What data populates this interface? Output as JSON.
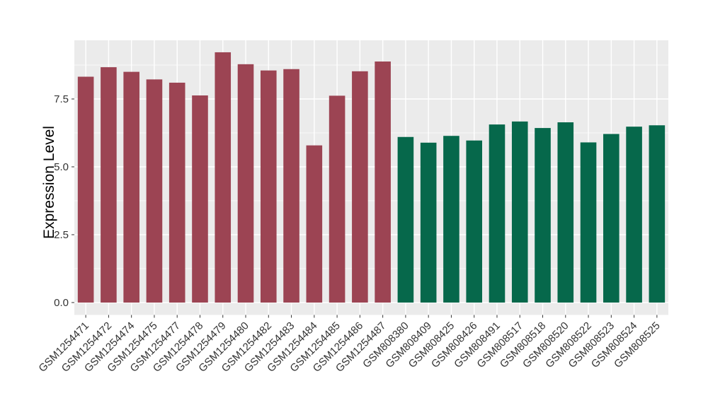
{
  "chart_data": {
    "type": "bar",
    "title": "",
    "xlabel": "",
    "ylabel": "Expression Level",
    "legend": "none",
    "grid": "major+minor",
    "categories": [
      "GSM1254471",
      "GSM1254472",
      "GSM1254474",
      "GSM1254475",
      "GSM1254477",
      "GSM1254478",
      "GSM1254479",
      "GSM1254480",
      "GSM1254482",
      "GSM1254483",
      "GSM1254484",
      "GSM1254485",
      "GSM1254486",
      "GSM1254487",
      "GSM808380",
      "GSM808409",
      "GSM808425",
      "GSM808426",
      "GSM808491",
      "GSM808517",
      "GSM808518",
      "GSM808520",
      "GSM808522",
      "GSM808523",
      "GSM808524",
      "GSM808525"
    ],
    "values": [
      8.32,
      8.67,
      8.5,
      8.22,
      8.1,
      7.63,
      9.22,
      8.78,
      8.55,
      8.6,
      5.79,
      7.62,
      8.52,
      8.88,
      6.1,
      5.89,
      6.14,
      5.97,
      6.56,
      6.67,
      6.43,
      6.64,
      5.9,
      6.21,
      6.48,
      6.53
    ],
    "color_groups": [
      {
        "color": "#9C4453",
        "from": 0,
        "to": 13
      },
      {
        "color": "#06684B",
        "from": 14,
        "to": 25
      }
    ],
    "ylim": [
      -0.46,
      9.66
    ],
    "yticks": [
      0,
      2.5,
      5,
      7.5
    ],
    "ytick_labels": [
      "0.0",
      "2.5",
      "5.0",
      "7.5"
    ],
    "minor_yticks": [
      1.25,
      3.75,
      6.25,
      8.75
    ],
    "panel_bg": "#EBEBEB",
    "grid_color": "#FFFFFF",
    "axis_text_color": "#333333",
    "tick_color": "#333333"
  }
}
